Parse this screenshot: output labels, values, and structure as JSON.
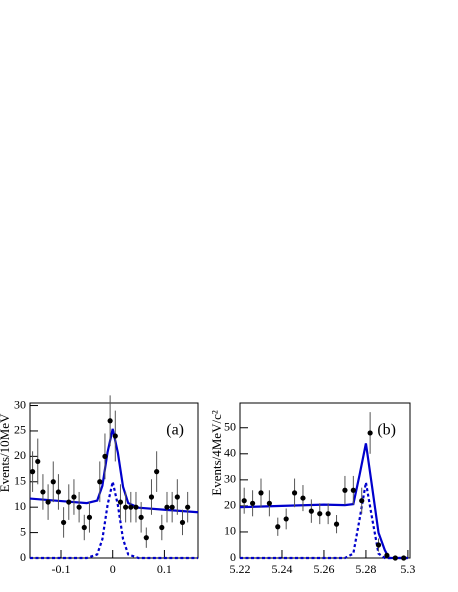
{
  "chart_data": [
    {
      "type": "scatter",
      "label": "(a)",
      "ylabel": "Events/10MeV",
      "xlim": [
        -0.16,
        0.165
      ],
      "ylim": [
        0,
        30.5
      ],
      "xticks": [
        -0.1,
        0,
        0.1
      ],
      "yticks": [
        0,
        5,
        10,
        15,
        20,
        25,
        30
      ],
      "points": {
        "color": "#000000",
        "x": [
          -0.155,
          -0.145,
          -0.135,
          -0.125,
          -0.115,
          -0.105,
          -0.095,
          -0.085,
          -0.075,
          -0.065,
          -0.055,
          -0.045,
          -0.025,
          -0.015,
          -0.005,
          0.005,
          0.015,
          0.025,
          0.035,
          0.045,
          0.055,
          0.065,
          0.075,
          0.085,
          0.095,
          0.105,
          0.115,
          0.125,
          0.135,
          0.145
        ],
        "values": [
          17,
          19,
          13,
          11,
          15,
          13,
          7,
          11,
          12,
          10,
          6,
          8,
          15,
          20,
          27,
          24,
          11,
          10,
          10,
          10,
          8,
          4,
          12,
          17,
          6,
          10,
          10,
          12,
          7,
          10
        ],
        "errors": [
          4,
          4.5,
          3.5,
          3.5,
          4,
          3.5,
          3,
          3.5,
          3.5,
          3,
          2.5,
          3,
          4,
          4.5,
          5,
          5,
          3.5,
          3,
          3,
          3,
          3,
          2,
          3.5,
          4,
          2.5,
          3,
          3,
          3.5,
          2.5,
          3
        ]
      },
      "series": [
        {
          "color": "#0000cc",
          "style": "solid",
          "x": [
            -0.16,
            -0.1,
            -0.05,
            -0.03,
            -0.02,
            -0.01,
            0,
            0.01,
            0.02,
            0.03,
            0.05,
            0.1,
            0.165
          ],
          "values": [
            11.7,
            11.2,
            10.8,
            11.3,
            14.2,
            20.8,
            25.4,
            20.7,
            14,
            10.8,
            9.9,
            9.5,
            9
          ]
        },
        {
          "color": "#0000cc",
          "style": "dotted",
          "x": [
            -0.16,
            -0.1,
            -0.05,
            -0.03,
            -0.02,
            -0.01,
            0,
            0.01,
            0.02,
            0.03,
            0.05,
            0.1,
            0.165
          ],
          "values": [
            0,
            0,
            0,
            0.7,
            3.7,
            10.4,
            15,
            10.4,
            3.7,
            0.7,
            0,
            0,
            0
          ]
        }
      ]
    },
    {
      "type": "scatter",
      "label": "(b)",
      "ylabel": "Events/4MeV/c²",
      "xlim": [
        5.22,
        5.301
      ],
      "ylim": [
        0,
        59.5
      ],
      "xticks": [
        5.22,
        5.24,
        5.26,
        5.28,
        5.3
      ],
      "yticks": [
        0,
        10,
        20,
        30,
        40,
        50
      ],
      "points": {
        "color": "#000000",
        "x": [
          5.222,
          5.226,
          5.23,
          5.234,
          5.238,
          5.242,
          5.246,
          5.25,
          5.254,
          5.258,
          5.262,
          5.266,
          5.27,
          5.274,
          5.278,
          5.282,
          5.286,
          5.29,
          5.294,
          5.298
        ],
        "values": [
          22,
          21,
          25,
          21,
          12,
          15,
          25,
          23,
          18,
          17,
          17,
          13,
          26,
          26,
          22,
          48,
          5,
          1,
          0,
          0
        ],
        "errors": [
          5,
          5,
          5.5,
          5,
          3.5,
          4,
          5.5,
          5,
          4.5,
          4,
          4,
          3.5,
          5.5,
          5.5,
          5,
          8,
          2.5,
          1,
          0,
          0
        ]
      },
      "series": [
        {
          "color": "#0000cc",
          "style": "solid",
          "x": [
            5.22,
            5.24,
            5.26,
            5.27,
            5.274,
            5.277,
            5.28,
            5.283,
            5.286,
            5.289,
            5.291,
            5.3
          ],
          "values": [
            19.5,
            20,
            20.5,
            20.3,
            20.7,
            32,
            44,
            27,
            9.7,
            3,
            0,
            0
          ]
        },
        {
          "color": "#0000cc",
          "style": "dotted",
          "x": [
            5.22,
            5.24,
            5.26,
            5.27,
            5.274,
            5.277,
            5.28,
            5.283,
            5.286,
            5.289,
            5.291,
            5.3
          ],
          "values": [
            0,
            0,
            0,
            0,
            1.7,
            15,
            29,
            15,
            1.7,
            0,
            0,
            0
          ]
        }
      ]
    }
  ]
}
